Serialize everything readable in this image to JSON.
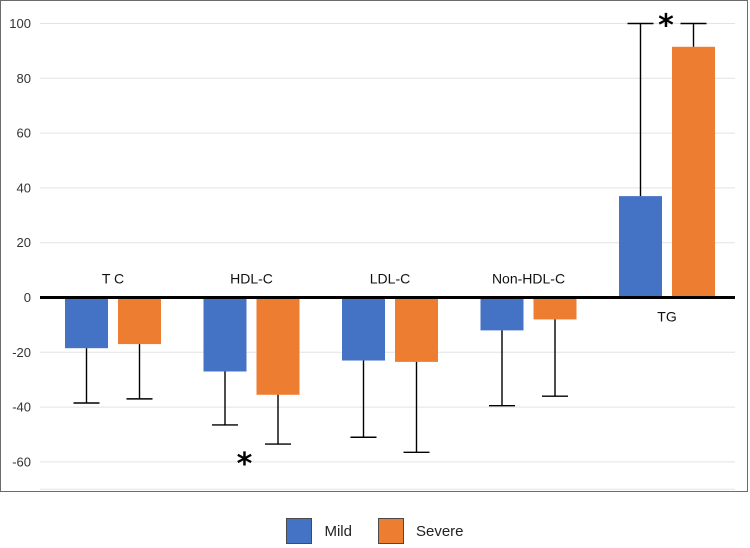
{
  "chart_data": {
    "type": "bar",
    "categories": [
      "T C",
      "HDL-C",
      "LDL-C",
      "Non-HDL-C",
      "TG"
    ],
    "series": [
      {
        "name": "Mild",
        "color": "#4472c4",
        "values": [
          -18.5,
          -27,
          -23,
          -12,
          37
        ],
        "error": [
          20,
          19.5,
          28,
          27.5,
          63
        ]
      },
      {
        "name": "Severe",
        "color": "#ed7d31",
        "values": [
          -17,
          -35.5,
          -23.5,
          -8,
          91.5
        ],
        "error": [
          20,
          18,
          33,
          28,
          8.5
        ]
      }
    ],
    "ylim": [
      -70,
      100
    ],
    "yticks": [
      -60,
      -40,
      -20,
      0,
      20,
      40,
      60,
      80,
      100
    ],
    "grid": true,
    "legend_position": "bottom",
    "annotations": [
      {
        "text": "*",
        "category": "HDL-C",
        "position": "below"
      },
      {
        "text": "*",
        "category": "TG",
        "position": "above"
      }
    ]
  }
}
